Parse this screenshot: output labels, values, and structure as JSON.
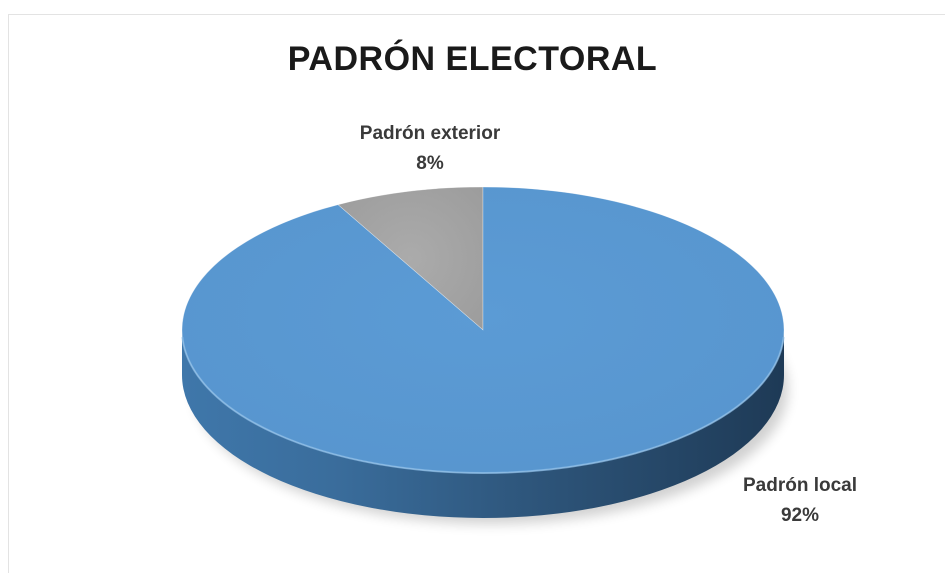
{
  "chart_data": {
    "type": "pie",
    "title": "PADRÓN ELECTORAL",
    "three_d": true,
    "legend": "none",
    "slices": [
      {
        "name": "Padrón exterior",
        "value": 8,
        "label": "8%",
        "color": "#a5a5a5"
      },
      {
        "name": "Padrón local",
        "value": 92,
        "label": "92%",
        "color": "#5b9bd5"
      }
    ]
  }
}
